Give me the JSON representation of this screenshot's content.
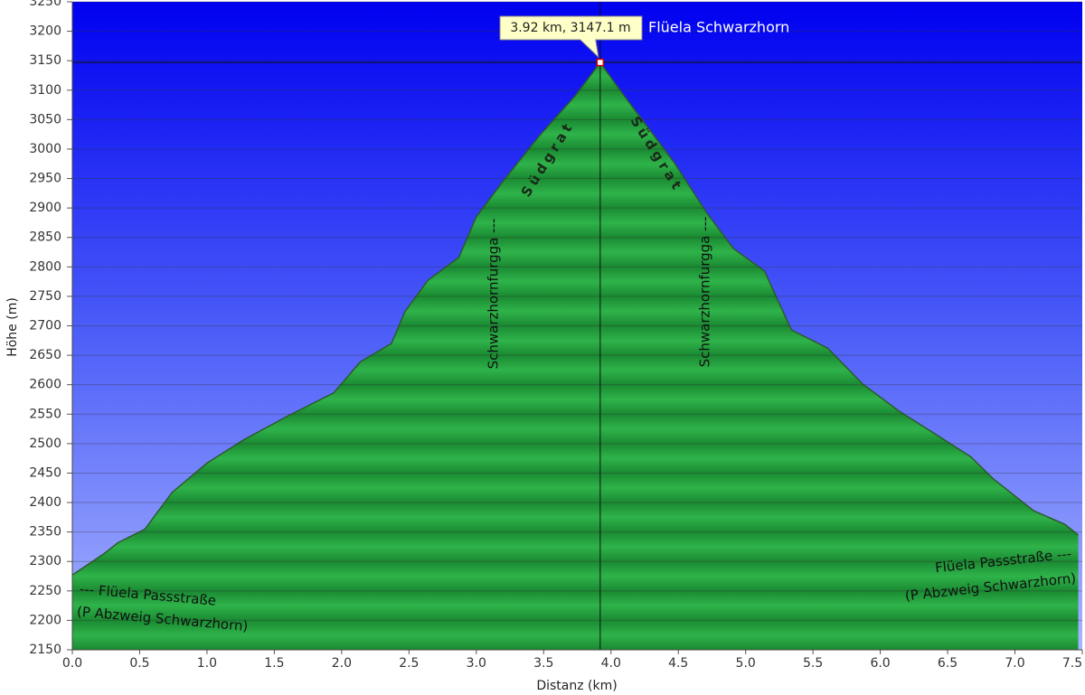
{
  "chart_data": {
    "type": "area",
    "xlabel": "Distanz (km)",
    "ylabel": "Höhe (m)",
    "x": [
      0.0,
      0.24,
      0.34,
      0.54,
      0.74,
      1.0,
      1.27,
      1.6,
      1.94,
      2.14,
      2.37,
      2.47,
      2.64,
      2.87,
      3.0,
      3.2,
      3.47,
      3.74,
      3.92,
      4.07,
      4.27,
      4.47,
      4.71,
      4.91,
      5.14,
      5.34,
      5.61,
      5.87,
      6.14,
      6.41,
      6.67,
      6.84,
      7.14,
      7.37,
      7.47
    ],
    "values": [
      2277,
      2314,
      2332,
      2355,
      2417,
      2467,
      2506,
      2547,
      2586,
      2639,
      2670,
      2724,
      2777,
      2816,
      2885,
      2946,
      3023,
      3092,
      3147,
      3099,
      3038,
      2977,
      2892,
      2831,
      2793,
      2693,
      2662,
      2601,
      2555,
      2516,
      2478,
      2440,
      2386,
      2363,
      2345
    ],
    "color": "#1f9b3a",
    "xlim": [
      0,
      7.5
    ],
    "ylim": [
      2150,
      3250
    ],
    "xticks": [
      {
        "value": 0,
        "label": "0.0"
      },
      0.5,
      {
        "value": 1,
        "label": "1.0"
      },
      1.5,
      {
        "value": 2,
        "label": "2.0"
      },
      2.5,
      {
        "value": 3,
        "label": "3.0"
      },
      3.5,
      {
        "value": 4,
        "label": "4.0"
      },
      4.5,
      {
        "value": 5,
        "label": "5.0"
      },
      5.5,
      {
        "value": 6,
        "label": "6.0"
      },
      6.5,
      {
        "value": 7,
        "label": "7.0"
      },
      7.5
    ],
    "yticks": [
      2150,
      2200,
      2250,
      2300,
      2350,
      2400,
      2450,
      2500,
      2550,
      2600,
      2650,
      2700,
      2750,
      2800,
      2850,
      2900,
      2950,
      3000,
      3050,
      3100,
      3150,
      3200,
      3250
    ],
    "grid": true,
    "cursor": {
      "x": 3.92,
      "y": 3147.1,
      "label": "3.92 km, 3147.1 m"
    },
    "annotations": [
      "Flüela Schwarzhorn",
      "Südgrat",
      "Südgrat",
      "Schwarzhornfurgga ---",
      "Schwarzhornfurgga ---",
      "--- Flüela Passstraße",
      "(P Abzweig Schwarzhorn)",
      "Flüela Passstraße ---",
      "(P Abzweig Schwarzhorn)"
    ]
  }
}
